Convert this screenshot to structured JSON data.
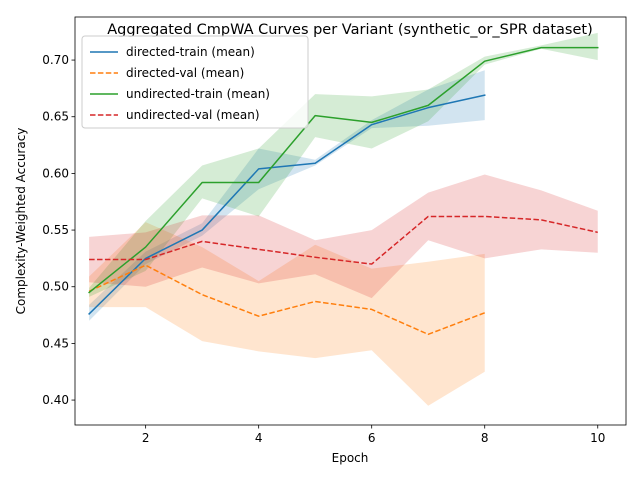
{
  "chart_data": {
    "type": "line",
    "title": "Aggregated CmpWA Curves per Variant (synthetic_or_SPR dataset)",
    "xlabel": "Epoch",
    "ylabel": "Complexity-Weighted Accuracy",
    "xlim": [
      0.75,
      10.5
    ],
    "ylim": [
      0.378,
      0.738
    ],
    "xticks": [
      2,
      4,
      6,
      8,
      10
    ],
    "yticks": [
      0.4,
      0.45,
      0.5,
      0.55,
      0.6,
      0.65,
      0.7
    ],
    "ytick_labels": [
      "0.40",
      "0.45",
      "0.50",
      "0.55",
      "0.60",
      "0.65",
      "0.70"
    ],
    "grid": false,
    "legend_position": "top-left",
    "series": [
      {
        "name": "directed-train (mean)",
        "color": "#1f77b4",
        "dash": "solid",
        "x": [
          1,
          2,
          3,
          4,
          5,
          6,
          7,
          8
        ],
        "y": [
          0.476,
          0.525,
          0.55,
          0.604,
          0.609,
          0.643,
          0.658,
          0.669
        ],
        "lower": [
          0.47,
          0.52,
          0.545,
          0.586,
          0.607,
          0.64,
          0.642,
          0.647
        ],
        "upper": [
          0.484,
          0.531,
          0.556,
          0.622,
          0.612,
          0.647,
          0.674,
          0.691
        ]
      },
      {
        "name": "directed-val (mean)",
        "color": "#ff7f0e",
        "dash": "dashed",
        "x": [
          1,
          2,
          3,
          4,
          5,
          6,
          7,
          8
        ],
        "y": [
          0.496,
          0.519,
          0.493,
          0.474,
          0.487,
          0.48,
          0.458,
          0.477
        ],
        "lower": [
          0.482,
          0.482,
          0.452,
          0.443,
          0.437,
          0.444,
          0.395,
          0.425
        ],
        "upper": [
          0.509,
          0.557,
          0.535,
          0.505,
          0.537,
          0.516,
          0.522,
          0.529
        ]
      },
      {
        "name": "undirected-train (mean)",
        "color": "#2ca02c",
        "dash": "solid",
        "x": [
          1,
          2,
          3,
          4,
          5,
          6,
          7,
          8,
          9,
          10
        ],
        "y": [
          0.495,
          0.535,
          0.592,
          0.592,
          0.651,
          0.645,
          0.66,
          0.699,
          0.711,
          0.711
        ],
        "lower": [
          0.491,
          0.514,
          0.578,
          0.562,
          0.632,
          0.622,
          0.646,
          0.696,
          0.71,
          0.7
        ],
        "upper": [
          0.499,
          0.558,
          0.607,
          0.622,
          0.67,
          0.668,
          0.674,
          0.703,
          0.713,
          0.724
        ]
      },
      {
        "name": "undirected-val (mean)",
        "color": "#d62728",
        "dash": "dashed",
        "x": [
          1,
          2,
          3,
          4,
          5,
          6,
          7,
          8,
          9,
          10
        ],
        "y": [
          0.524,
          0.524,
          0.54,
          0.533,
          0.526,
          0.52,
          0.562,
          0.562,
          0.559,
          0.548
        ],
        "lower": [
          0.504,
          0.5,
          0.517,
          0.503,
          0.511,
          0.49,
          0.541,
          0.525,
          0.533,
          0.53
        ],
        "upper": [
          0.544,
          0.548,
          0.563,
          0.563,
          0.541,
          0.55,
          0.583,
          0.599,
          0.585,
          0.567
        ]
      }
    ]
  }
}
